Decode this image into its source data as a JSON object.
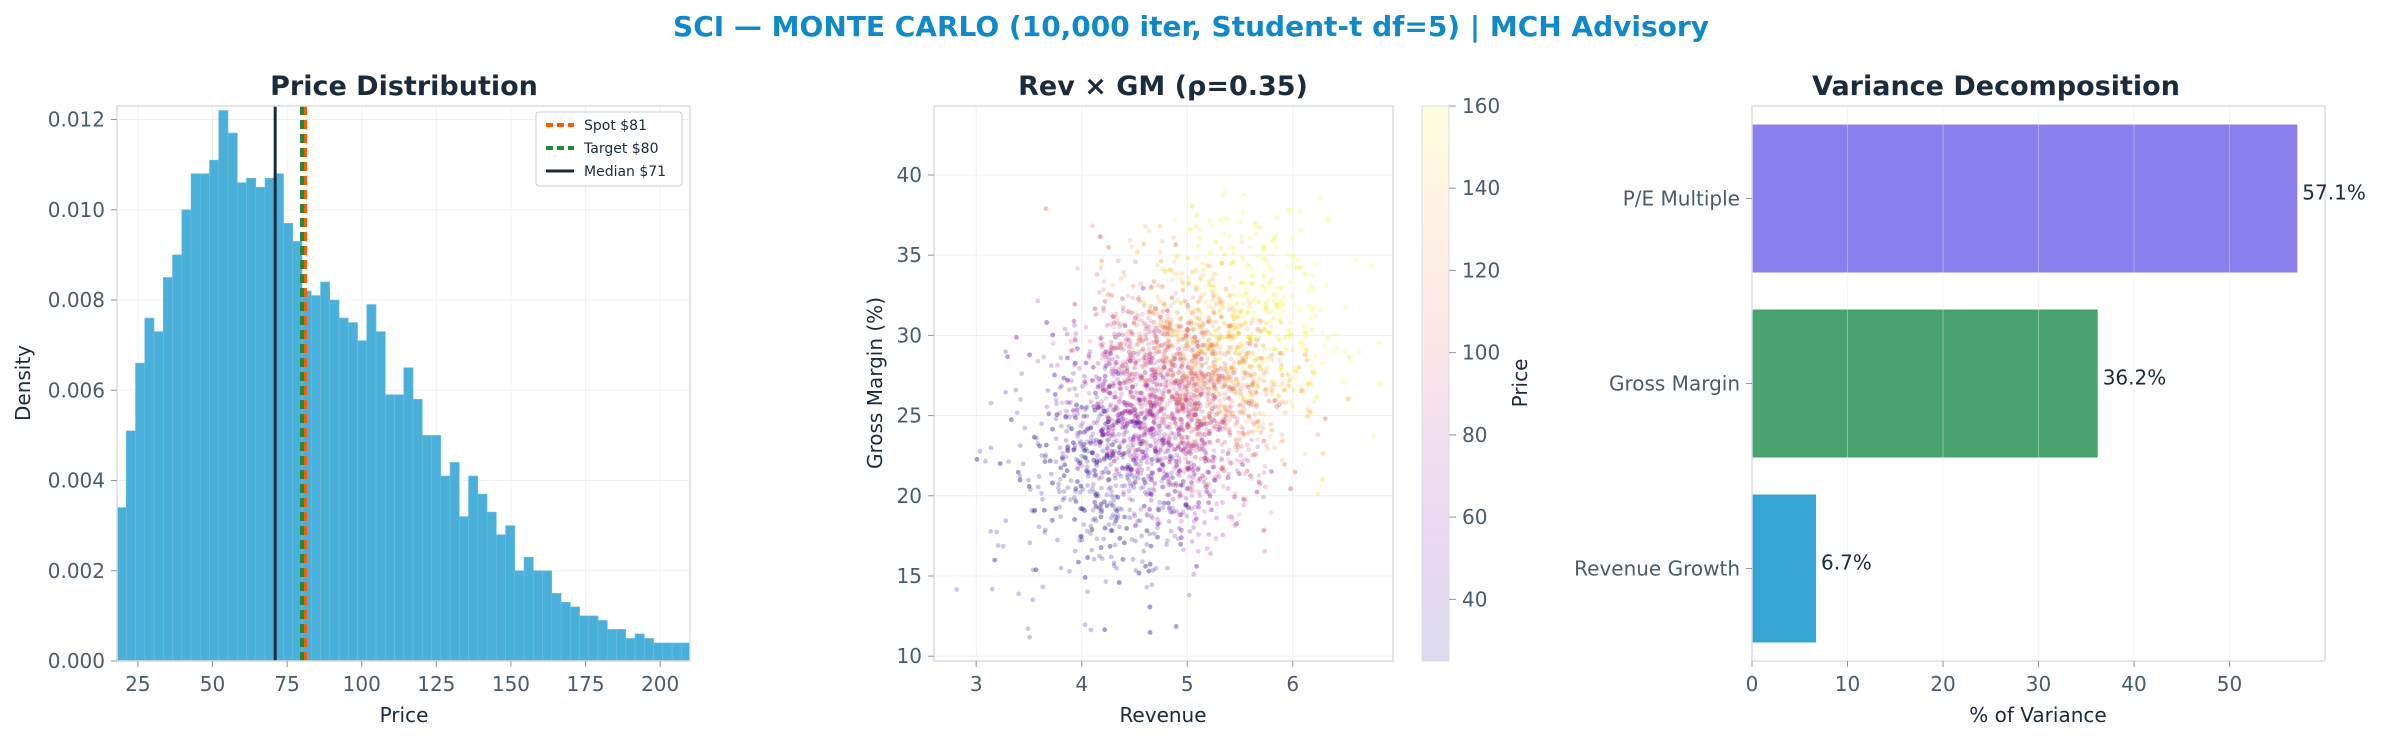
{
  "suptitle": "SCI — MONTE CARLO (10,000 iter, Student-t df=5) | MCH Advisory",
  "colors": {
    "title": "#1a2b3c",
    "suptitle": "#0f89c9",
    "hist": "#4aafd9",
    "spot": "#ff5a00",
    "target": "#1e8a3a",
    "median": "#1a2b3c",
    "bar_pe": "#8a7fec",
    "bar_gm": "#48a26d",
    "bar_rev": "#35a5d5",
    "tick_text": "#4a5b6c"
  },
  "chart_data": [
    {
      "type": "bar",
      "subtype": "histogram",
      "title": "Price Distribution",
      "xlabel": "Price",
      "ylabel": "Density",
      "xlim": [
        18,
        210
      ],
      "ylim": [
        0,
        0.0123
      ],
      "xticks": [
        "25",
        "50",
        "75",
        "100",
        "125",
        "150",
        "175",
        "200"
      ],
      "yticks": [
        "0.000",
        "0.002",
        "0.004",
        "0.006",
        "0.008",
        "0.010",
        "0.012"
      ],
      "bin_start": 18,
      "bin_width": 3.1,
      "values": [
        0.0034,
        0.0051,
        0.0066,
        0.0076,
        0.0073,
        0.0085,
        0.009,
        0.01,
        0.0108,
        0.0108,
        0.0111,
        0.0122,
        0.0117,
        0.0106,
        0.0107,
        0.0105,
        0.0107,
        0.0108,
        0.0097,
        0.0093,
        0.0082,
        0.0081,
        0.0084,
        0.008,
        0.0076,
        0.0075,
        0.0071,
        0.0079,
        0.0073,
        0.0059,
        0.0059,
        0.0065,
        0.0058,
        0.005,
        0.005,
        0.0041,
        0.0044,
        0.0032,
        0.0041,
        0.0037,
        0.0033,
        0.0028,
        0.003,
        0.002,
        0.0023,
        0.002,
        0.002,
        0.0015,
        0.0013,
        0.0012,
        0.001,
        0.001,
        0.0009,
        0.0007,
        0.0007,
        0.0005,
        0.0006,
        0.0005,
        0.0004,
        0.0004,
        0.0004,
        0.0004
      ],
      "vlines": [
        {
          "label": "Spot $81",
          "x": 81,
          "style": "dashed"
        },
        {
          "label": "Target $80",
          "x": 80,
          "style": "dashed"
        },
        {
          "label": "Median $71",
          "x": 71,
          "style": "solid"
        }
      ],
      "legend": "top-right",
      "grid": true
    },
    {
      "type": "scatter",
      "title": "Rev × GM (ρ=0.35)",
      "xlabel": "Revenue",
      "ylabel": "Gross Margin (%)",
      "xlim": [
        2.6,
        6.95
      ],
      "ylim": [
        9.7,
        44.3
      ],
      "xticks": [
        "3",
        "4",
        "5",
        "6"
      ],
      "yticks": [
        "10",
        "15",
        "20",
        "25",
        "30",
        "35",
        "40"
      ],
      "n_points": 10000,
      "x_mean": 4.85,
      "x_sd": 0.6,
      "y_mean": 26.0,
      "y_sd": 4.5,
      "correlation": 0.35,
      "colorbar": {
        "label": "Price",
        "range": [
          25,
          160
        ],
        "ticks": [
          "40",
          "60",
          "80",
          "100",
          "120",
          "140",
          "160"
        ],
        "colormap": "plasma"
      },
      "grid": true
    },
    {
      "type": "bar",
      "orientation": "horizontal",
      "title": "Variance Decomposition",
      "xlabel": "% of Variance",
      "xlim": [
        0,
        60
      ],
      "xticks": [
        "0",
        "10",
        "20",
        "30",
        "40",
        "50"
      ],
      "categories": [
        "P/E Multiple",
        "Gross Margin",
        "Revenue Growth"
      ],
      "values": [
        57.1,
        36.2,
        6.7
      ],
      "labels": [
        "57.1%",
        "36.2%",
        "6.7%"
      ],
      "grid": true
    }
  ]
}
